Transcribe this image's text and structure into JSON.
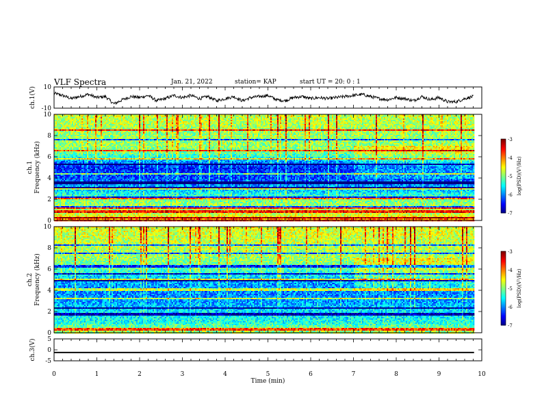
{
  "header": {
    "title": "VLF Spectra",
    "date": "Jan. 21, 2022",
    "station": "station= KAP",
    "start": "start  UT =   20: 0  : 1"
  },
  "chart_data": [
    {
      "type": "line",
      "panel": "ch1-waveform",
      "ylabel": "ch.1(V)",
      "ylim": [
        -10,
        10
      ],
      "yticks": [
        "10",
        "-10"
      ],
      "xlim": [
        0,
        10
      ],
      "x_range_data": [
        0,
        9.82
      ],
      "series": [
        {
          "x": [
            0,
            0.2,
            0.4,
            0.6,
            0.8,
            1.0,
            1.2,
            1.4,
            1.6,
            1.8,
            2.0,
            2.2,
            2.4,
            2.6,
            2.8,
            3.0,
            3.2,
            3.4,
            3.6,
            3.8,
            4.0,
            4.2,
            4.4,
            4.6,
            4.8,
            5.0,
            5.2,
            5.4,
            5.6,
            5.8,
            6.0,
            6.2,
            6.4,
            6.6,
            6.8,
            7.0,
            7.2,
            7.4,
            7.6,
            7.8,
            8.0,
            8.2,
            8.4,
            8.6,
            8.8,
            9.0,
            9.2,
            9.4,
            9.6,
            9.8
          ],
          "values": [
            4,
            2,
            -1,
            1,
            3,
            0,
            1,
            -6,
            -2,
            1,
            0,
            2,
            -3,
            -1,
            2,
            0,
            2,
            -1,
            1,
            -3,
            -1,
            1,
            -3,
            0,
            1,
            2,
            -2,
            -3,
            0,
            1,
            -1,
            0,
            -1,
            0,
            1,
            2,
            3,
            1,
            -1,
            -2,
            0,
            -1,
            -3,
            1,
            -2,
            0,
            -4,
            -4,
            -1,
            1
          ]
        }
      ]
    },
    {
      "type": "heatmap",
      "panel": "ch1-spectrogram",
      "ylabel": "ch.1 Frequency (kHz)",
      "ylim": [
        0,
        10
      ],
      "yticks": [
        "0",
        "2",
        "4",
        "6",
        "8",
        "10"
      ],
      "xlim": [
        0,
        10
      ],
      "x_range_data": [
        0,
        9.82
      ],
      "colorbar": {
        "label": "log(PSD)(V²/Hz)",
        "range": [
          -7,
          -3
        ],
        "ticks": [
          "-3",
          "-4",
          "-5",
          "-6",
          "-7"
        ]
      },
      "profile_freq_khz": [
        0,
        0.5,
        1,
        2,
        3,
        4,
        4.7,
        5,
        5.5,
        6,
        6.5,
        7,
        8,
        9,
        10
      ],
      "profile_log_psd": [
        -3.6,
        -4.6,
        -4.8,
        -5.0,
        -5.8,
        -6.2,
        -6.3,
        -6.4,
        -6.0,
        -5.4,
        -5.0,
        -4.9,
        -4.9,
        -4.8,
        -4.7
      ],
      "bands_khz": [
        0.3,
        0.9,
        1.3,
        2.2,
        3.1,
        3.6,
        4.4,
        5.3,
        5.8,
        6.6,
        7.6,
        8.5
      ]
    },
    {
      "type": "heatmap",
      "panel": "ch2-spectrogram",
      "ylabel": "ch.2 Frequency (kHz)",
      "ylim": [
        0,
        10
      ],
      "yticks": [
        "0",
        "2",
        "4",
        "6",
        "8",
        "10"
      ],
      "xlim": [
        0,
        10
      ],
      "x_range_data": [
        0,
        9.82
      ],
      "colorbar": {
        "label": "log(PSD)(V²/Hz)",
        "range": [
          -7,
          -3
        ],
        "ticks": [
          "-3",
          "-4",
          "-5",
          "-6",
          "-7"
        ]
      },
      "profile_freq_khz": [
        0,
        0.5,
        1,
        2,
        3,
        4,
        5,
        6,
        7,
        8,
        9,
        10
      ],
      "profile_log_psd": [
        -4.8,
        -5.0,
        -5.4,
        -5.6,
        -5.9,
        -6.0,
        -5.8,
        -5.2,
        -4.9,
        -4.8,
        -4.7,
        -4.6
      ],
      "bands_khz": [
        0.4,
        1.8,
        2.4,
        3.3,
        4.1,
        5.0,
        5.6,
        6.3,
        7.5,
        8.3
      ]
    },
    {
      "type": "line",
      "panel": "ch3-waveform",
      "ylabel": "ch.3(V)",
      "ylim": [
        -5,
        5
      ],
      "yticks": [
        "5",
        "0",
        "-5"
      ],
      "xlim": [
        0,
        10
      ],
      "xlabel": "Time (min)",
      "xticks": [
        "0",
        "1",
        "2",
        "3",
        "4",
        "5",
        "6",
        "7",
        "8",
        "9",
        "10"
      ],
      "x_range_data": [
        0,
        9.82
      ],
      "series": [
        {
          "x": [
            0,
            9.82
          ],
          "values": [
            -1.2,
            -1.2
          ],
          "band_width": [
            -1.5,
            -0.9
          ]
        }
      ]
    }
  ]
}
